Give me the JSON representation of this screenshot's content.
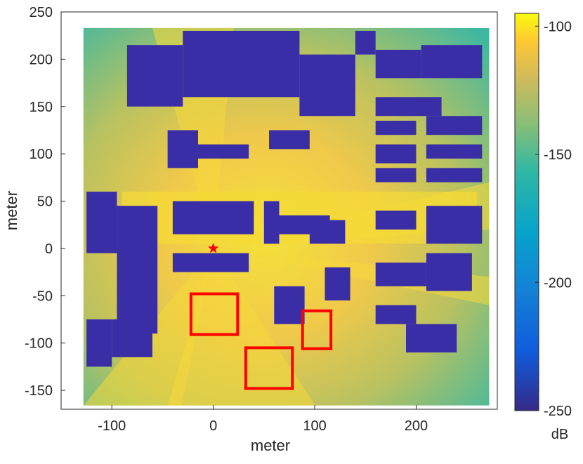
{
  "chart_data": {
    "type": "heatmap",
    "title": "",
    "xlabel": "meter",
    "ylabel": "meter",
    "xlim": [
      -150,
      280
    ],
    "ylim": [
      -170,
      250
    ],
    "xticks": [
      -100,
      0,
      100,
      200
    ],
    "yticks": [
      -150,
      -100,
      -50,
      0,
      50,
      100,
      150,
      200,
      250
    ],
    "data_extent": {
      "x": [
        -128,
        272
      ],
      "y": [
        -166,
        233
      ]
    },
    "colorbar": {
      "label": "dB",
      "range": [
        -250,
        -95
      ],
      "ticks": [
        -100,
        -150,
        -200,
        -250
      ],
      "colormap": "parula"
    },
    "grid": false,
    "legend": "none",
    "transmitter": {
      "x": 0,
      "y": 0,
      "marker": "star",
      "color": "#ff0000"
    },
    "highlight_regions": [
      {
        "x": [
          -22,
          24
        ],
        "y": [
          -91,
          -48
        ],
        "color": "#ff0000"
      },
      {
        "x": [
          88,
          116
        ],
        "y": [
          -106,
          -66
        ],
        "color": "#ff0000"
      },
      {
        "x": [
          32,
          78
        ],
        "y": [
          -148,
          -105
        ],
        "color": "#ff0000"
      }
    ],
    "buildings": [
      {
        "x": [
          -85,
          -30
        ],
        "y": [
          150,
          215
        ]
      },
      {
        "x": [
          -30,
          85
        ],
        "y": [
          160,
          230
        ]
      },
      {
        "x": [
          85,
          140
        ],
        "y": [
          140,
          205
        ]
      },
      {
        "x": [
          140,
          160
        ],
        "y": [
          205,
          230
        ]
      },
      {
        "x": [
          -125,
          -95
        ],
        "y": [
          -5,
          60
        ]
      },
      {
        "x": [
          -95,
          -55
        ],
        "y": [
          -90,
          45
        ]
      },
      {
        "x": [
          -45,
          -15
        ],
        "y": [
          85,
          125
        ]
      },
      {
        "x": [
          -15,
          35
        ],
        "y": [
          95,
          110
        ]
      },
      {
        "x": [
          -40,
          40
        ],
        "y": [
          15,
          50
        ]
      },
      {
        "x": [
          65,
          115
        ],
        "y": [
          15,
          35
        ]
      },
      {
        "x": [
          50,
          65
        ],
        "y": [
          5,
          50
        ]
      },
      {
        "x": [
          95,
          130
        ],
        "y": [
          5,
          30
        ]
      },
      {
        "x": [
          55,
          95
        ],
        "y": [
          105,
          125
        ]
      },
      {
        "x": [
          -40,
          35
        ],
        "y": [
          -25,
          -5
        ]
      },
      {
        "x": [
          60,
          90
        ],
        "y": [
          -80,
          -40
        ]
      },
      {
        "x": [
          110,
          135
        ],
        "y": [
          -55,
          -20
        ]
      },
      {
        "x": [
          160,
          205
        ],
        "y": [
          180,
          210
        ]
      },
      {
        "x": [
          205,
          265
        ],
        "y": [
          180,
          215
        ]
      },
      {
        "x": [
          160,
          225
        ],
        "y": [
          140,
          160
        ]
      },
      {
        "x": [
          160,
          200
        ],
        "y": [
          120,
          135
        ]
      },
      {
        "x": [
          210,
          265
        ],
        "y": [
          120,
          140
        ]
      },
      {
        "x": [
          160,
          200
        ],
        "y": [
          90,
          110
        ]
      },
      {
        "x": [
          210,
          265
        ],
        "y": [
          95,
          110
        ]
      },
      {
        "x": [
          160,
          200
        ],
        "y": [
          70,
          85
        ]
      },
      {
        "x": [
          210,
          265
        ],
        "y": [
          70,
          85
        ]
      },
      {
        "x": [
          160,
          200
        ],
        "y": [
          20,
          40
        ]
      },
      {
        "x": [
          210,
          265
        ],
        "y": [
          5,
          45
        ]
      },
      {
        "x": [
          160,
          210
        ],
        "y": [
          -40,
          -15
        ]
      },
      {
        "x": [
          210,
          255
        ],
        "y": [
          -45,
          -5
        ]
      },
      {
        "x": [
          160,
          200
        ],
        "y": [
          -80,
          -60
        ]
      },
      {
        "x": [
          190,
          240
        ],
        "y": [
          -110,
          -80
        ]
      },
      {
        "x": [
          -125,
          -100
        ],
        "y": [
          -125,
          -75
        ]
      },
      {
        "x": [
          -100,
          -60
        ],
        "y": [
          -115,
          -75
        ]
      }
    ]
  }
}
